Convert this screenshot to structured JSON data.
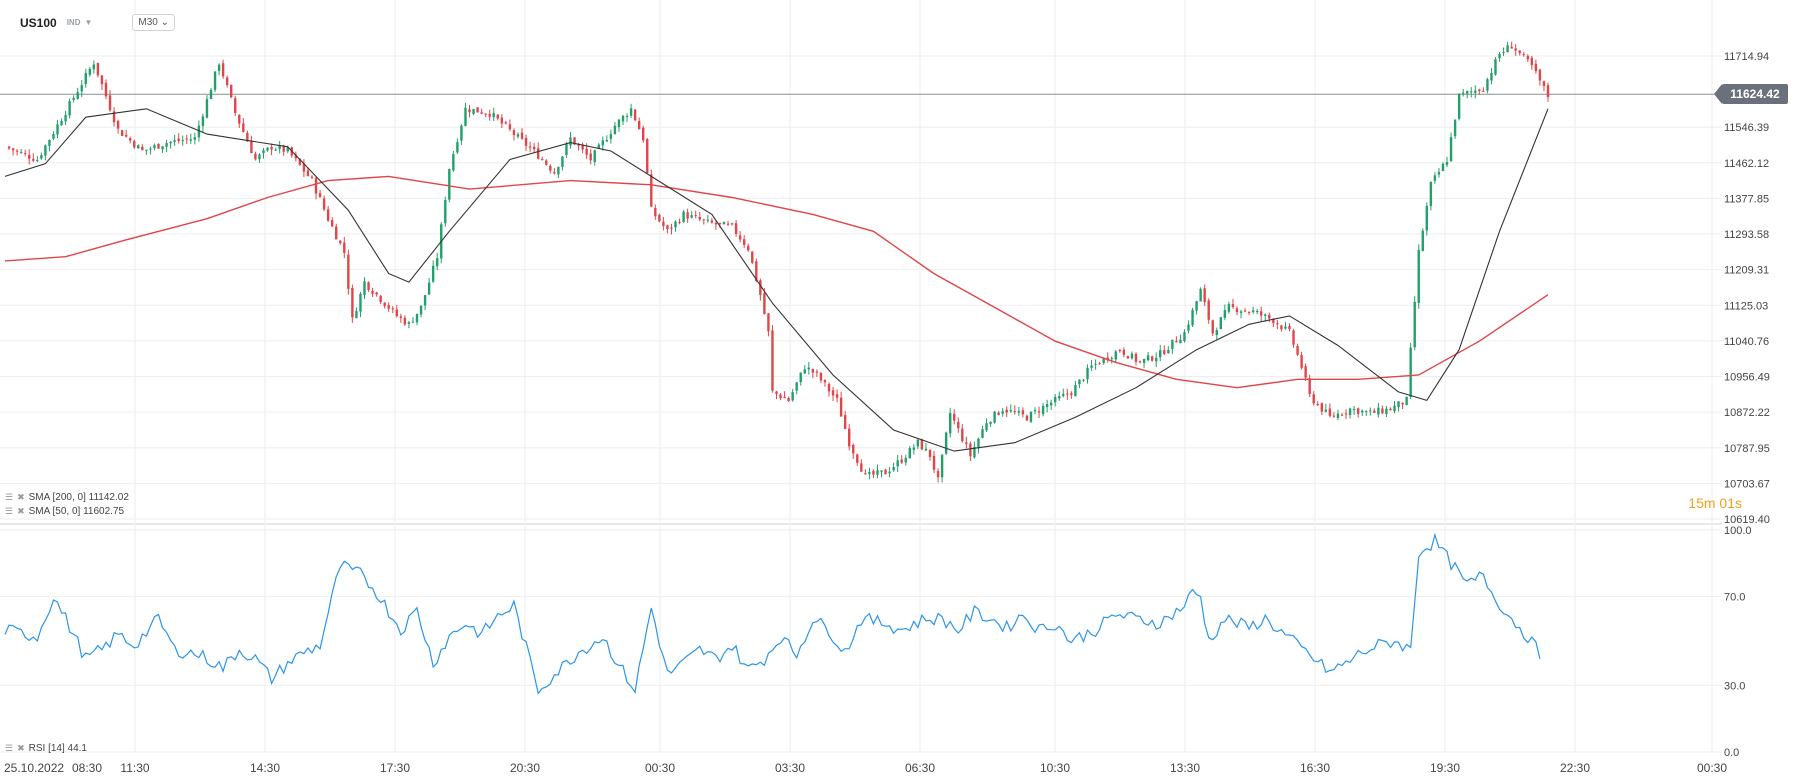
{
  "header": {
    "symbol": "US100",
    "type": "IND",
    "timeframe": "M30"
  },
  "indicators": {
    "sma200": "SMA [200, 0] 11142.02",
    "sma50": "SMA [50, 0] 11602.75",
    "rsi": "RSI [14] 44.1"
  },
  "countdown": "15m 01s",
  "last_price_label": "11624.42",
  "colors": {
    "up": "#22a06b",
    "down": "#e0454a",
    "sma200": "#e0454a",
    "sma50": "#333333",
    "rsi": "#2b95e9",
    "grid": "#eeeeee"
  },
  "chart_data": [
    {
      "type": "candlestick",
      "ylim": [
        10619.4,
        11800
      ],
      "y_ticks": [
        "11714.94",
        "11546.39",
        "11462.12",
        "11377.85",
        "11293.58",
        "11209.31",
        "11125.03",
        "11040.76",
        "10956.49",
        "10872.22",
        "10787.95",
        "10703.67",
        "10619.40"
      ],
      "x_ticks": [
        "25.10.2022",
        "08:30",
        "11:30",
        "14:30",
        "17:30",
        "20:30",
        "00:30",
        "03:30",
        "06:30",
        "10:30",
        "13:30",
        "16:30",
        "19:30",
        "22:30",
        "00:30"
      ],
      "last_price": 11624.42,
      "close_path": [
        [
          0,
          11500
        ],
        [
          8,
          11470
        ],
        [
          16,
          11600
        ],
        [
          22,
          11700
        ],
        [
          28,
          11540
        ],
        [
          34,
          11490
        ],
        [
          40,
          11510
        ],
        [
          47,
          11520
        ],
        [
          53,
          11700
        ],
        [
          57,
          11580
        ],
        [
          62,
          11470
        ],
        [
          66,
          11500
        ],
        [
          70,
          11490
        ],
        [
          76,
          11420
        ],
        [
          80,
          11330
        ],
        [
          84,
          11250
        ],
        [
          86,
          11090
        ],
        [
          89,
          11180
        ],
        [
          92,
          11150
        ],
        [
          97,
          11100
        ],
        [
          100,
          11080
        ],
        [
          103,
          11120
        ],
        [
          107,
          11240
        ],
        [
          110,
          11450
        ],
        [
          114,
          11590
        ],
        [
          120,
          11580
        ],
        [
          126,
          11530
        ],
        [
          132,
          11480
        ],
        [
          136,
          11440
        ],
        [
          140,
          11520
        ],
        [
          145,
          11470
        ],
        [
          151,
          11550
        ],
        [
          155,
          11590
        ],
        [
          158,
          11520
        ],
        [
          160,
          11350
        ],
        [
          164,
          11300
        ],
        [
          168,
          11340
        ],
        [
          174,
          11320
        ],
        [
          180,
          11310
        ],
        [
          184,
          11260
        ],
        [
          187,
          11150
        ],
        [
          189,
          11060
        ],
        [
          190,
          10920
        ],
        [
          194,
          10900
        ],
        [
          198,
          10980
        ],
        [
          201,
          10960
        ],
        [
          206,
          10900
        ],
        [
          209,
          10800
        ],
        [
          213,
          10720
        ],
        [
          218,
          10730
        ],
        [
          222,
          10760
        ],
        [
          226,
          10800
        ],
        [
          229,
          10770
        ],
        [
          231,
          10710
        ],
        [
          234,
          10870
        ],
        [
          239,
          10770
        ],
        [
          243,
          10850
        ],
        [
          247,
          10880
        ],
        [
          253,
          10860
        ],
        [
          258,
          10890
        ],
        [
          264,
          10920
        ],
        [
          269,
          10980
        ],
        [
          276,
          11020
        ],
        [
          281,
          10990
        ],
        [
          286,
          11010
        ],
        [
          292,
          11060
        ],
        [
          296,
          11160
        ],
        [
          299,
          11060
        ],
        [
          303,
          11120
        ],
        [
          309,
          11110
        ],
        [
          314,
          11090
        ],
        [
          318,
          11060
        ],
        [
          321,
          10980
        ],
        [
          323,
          10910
        ],
        [
          328,
          10860
        ],
        [
          333,
          10880
        ],
        [
          338,
          10870
        ],
        [
          343,
          10880
        ],
        [
          347,
          10900
        ],
        [
          350,
          11250
        ],
        [
          353,
          11410
        ],
        [
          357,
          11470
        ],
        [
          360,
          11620
        ],
        [
          366,
          11640
        ],
        [
          370,
          11720
        ],
        [
          373,
          11740
        ],
        [
          378,
          11690
        ],
        [
          382,
          11620
        ]
      ],
      "sma200_path": [
        [
          0,
          11230
        ],
        [
          15,
          11240
        ],
        [
          30,
          11280
        ],
        [
          50,
          11330
        ],
        [
          65,
          11380
        ],
        [
          80,
          11420
        ],
        [
          95,
          11430
        ],
        [
          115,
          11400
        ],
        [
          140,
          11420
        ],
        [
          160,
          11410
        ],
        [
          180,
          11380
        ],
        [
          200,
          11340
        ],
        [
          215,
          11300
        ],
        [
          230,
          11200
        ],
        [
          245,
          11120
        ],
        [
          260,
          11040
        ],
        [
          275,
          10990
        ],
        [
          290,
          10950
        ],
        [
          305,
          10930
        ],
        [
          320,
          10950
        ],
        [
          335,
          10950
        ],
        [
          350,
          10960
        ],
        [
          365,
          11040
        ],
        [
          382,
          11150
        ]
      ],
      "sma50_path": [
        [
          0,
          11430
        ],
        [
          10,
          11460
        ],
        [
          20,
          11570
        ],
        [
          35,
          11590
        ],
        [
          50,
          11530
        ],
        [
          70,
          11500
        ],
        [
          85,
          11350
        ],
        [
          95,
          11200
        ],
        [
          100,
          11180
        ],
        [
          110,
          11300
        ],
        [
          125,
          11470
        ],
        [
          140,
          11510
        ],
        [
          150,
          11490
        ],
        [
          160,
          11430
        ],
        [
          175,
          11340
        ],
        [
          190,
          11130
        ],
        [
          205,
          10960
        ],
        [
          220,
          10830
        ],
        [
          235,
          10780
        ],
        [
          250,
          10800
        ],
        [
          265,
          10860
        ],
        [
          280,
          10930
        ],
        [
          295,
          11020
        ],
        [
          308,
          11080
        ],
        [
          318,
          11100
        ],
        [
          330,
          11030
        ],
        [
          345,
          10920
        ],
        [
          352,
          10900
        ],
        [
          360,
          11020
        ],
        [
          370,
          11300
        ],
        [
          382,
          11590
        ]
      ]
    },
    {
      "type": "line",
      "name": "RSI [14]",
      "ylim": [
        0,
        100
      ],
      "y_ticks": [
        "100.0",
        "70.0",
        "30.0",
        "0.0"
      ],
      "path": [
        [
          0,
          55
        ],
        [
          8,
          52
        ],
        [
          12,
          70
        ],
        [
          15,
          60
        ],
        [
          20,
          42
        ],
        [
          24,
          46
        ],
        [
          28,
          53
        ],
        [
          32,
          48
        ],
        [
          38,
          60
        ],
        [
          42,
          46
        ],
        [
          48,
          44
        ],
        [
          54,
          38
        ],
        [
          58,
          46
        ],
        [
          62,
          42
        ],
        [
          66,
          33
        ],
        [
          70,
          40
        ],
        [
          74,
          45
        ],
        [
          78,
          48
        ],
        [
          83,
          84
        ],
        [
          88,
          80
        ],
        [
          92,
          72
        ],
        [
          98,
          55
        ],
        [
          102,
          64
        ],
        [
          106,
          40
        ],
        [
          110,
          52
        ],
        [
          114,
          58
        ],
        [
          118,
          53
        ],
        [
          122,
          61
        ],
        [
          126,
          66
        ],
        [
          129,
          47
        ],
        [
          132,
          28
        ],
        [
          136,
          35
        ],
        [
          142,
          45
        ],
        [
          148,
          52
        ],
        [
          152,
          39
        ],
        [
          156,
          28
        ],
        [
          160,
          65
        ],
        [
          164,
          35
        ],
        [
          168,
          40
        ],
        [
          172,
          46
        ],
        [
          176,
          42
        ],
        [
          180,
          48
        ],
        [
          184,
          37
        ],
        [
          188,
          42
        ],
        [
          192,
          52
        ],
        [
          196,
          44
        ],
        [
          200,
          60
        ],
        [
          204,
          55
        ],
        [
          208,
          45
        ],
        [
          212,
          60
        ],
        [
          218,
          58
        ],
        [
          222,
          55
        ],
        [
          228,
          60
        ],
        [
          232,
          60
        ],
        [
          236,
          55
        ],
        [
          240,
          63
        ],
        [
          244,
          60
        ],
        [
          248,
          56
        ],
        [
          252,
          62
        ],
        [
          256,
          55
        ],
        [
          260,
          58
        ],
        [
          264,
          50
        ],
        [
          270,
          55
        ],
        [
          275,
          62
        ],
        [
          280,
          60
        ],
        [
          286,
          58
        ],
        [
          292,
          66
        ],
        [
          294,
          72
        ],
        [
          296,
          70
        ],
        [
          298,
          50
        ],
        [
          302,
          60
        ],
        [
          308,
          56
        ],
        [
          312,
          60
        ],
        [
          316,
          54
        ],
        [
          320,
          48
        ],
        [
          324,
          42
        ],
        [
          328,
          36
        ],
        [
          332,
          40
        ],
        [
          336,
          45
        ],
        [
          340,
          48
        ],
        [
          344,
          50
        ],
        [
          348,
          46
        ],
        [
          350,
          90
        ],
        [
          354,
          95
        ],
        [
          358,
          85
        ],
        [
          362,
          75
        ],
        [
          366,
          80
        ],
        [
          368,
          72
        ],
        [
          372,
          62
        ],
        [
          375,
          56
        ],
        [
          377,
          52
        ],
        [
          380,
          44
        ]
      ]
    }
  ]
}
